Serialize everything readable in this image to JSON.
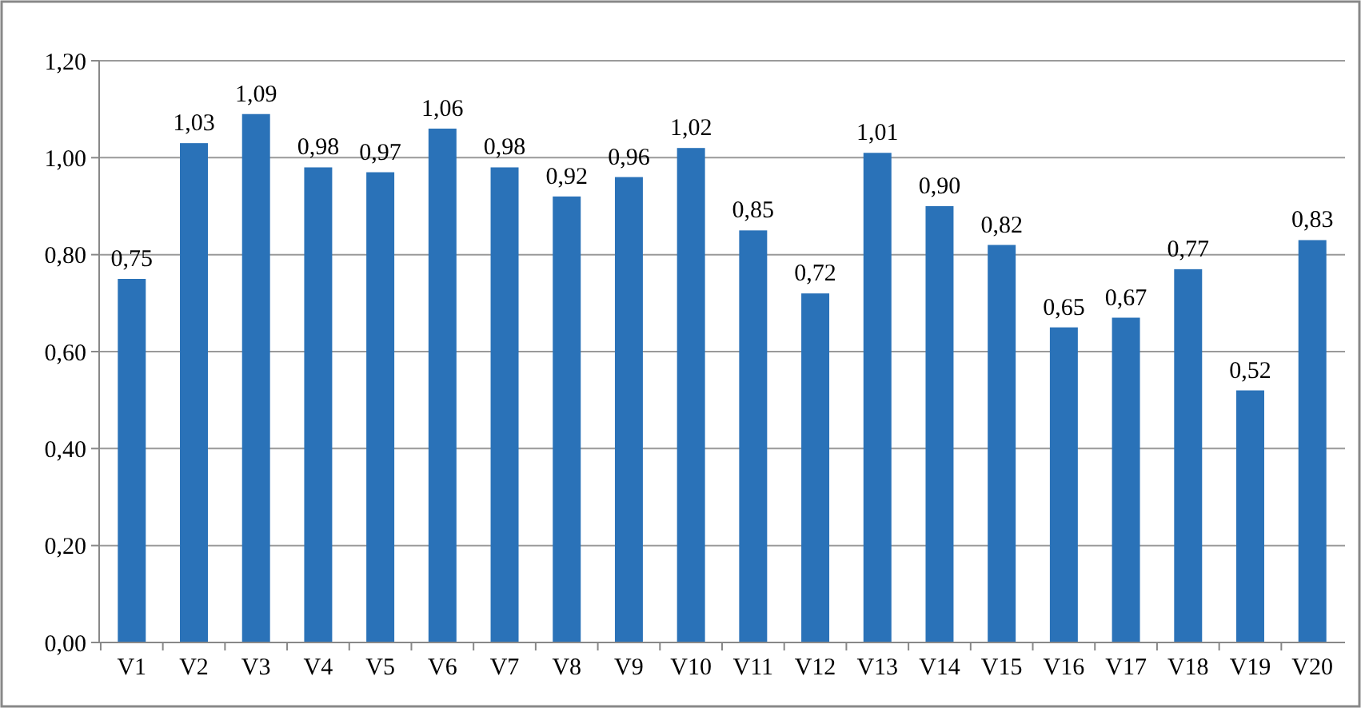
{
  "chart_data": {
    "type": "bar",
    "categories": [
      "V1",
      "V2",
      "V3",
      "V4",
      "V5",
      "V6",
      "V7",
      "V8",
      "V9",
      "V10",
      "V11",
      "V12",
      "V13",
      "V14",
      "V15",
      "V16",
      "V17",
      "V18",
      "V19",
      "V20"
    ],
    "values": [
      0.75,
      1.03,
      1.09,
      0.98,
      0.97,
      1.06,
      0.98,
      0.92,
      0.96,
      1.02,
      0.85,
      0.72,
      1.01,
      0.9,
      0.82,
      0.65,
      0.67,
      0.77,
      0.52,
      0.83
    ],
    "value_labels": [
      "0,75",
      "1,03",
      "1,09",
      "0,98",
      "0,97",
      "1,06",
      "0,98",
      "0,92",
      "0,96",
      "1,02",
      "0,85",
      "0,72",
      "1,01",
      "0,90",
      "0,82",
      "0,65",
      "0,67",
      "0,77",
      "0,52",
      "0,83"
    ],
    "color": "#2a72b8",
    "ylim": [
      0,
      1.2
    ],
    "yticks": [
      {
        "value": 0,
        "label": "0,00"
      },
      {
        "value": 0.2,
        "label": "0,20"
      },
      {
        "value": 0.4,
        "label": "0,40"
      },
      {
        "value": 0.6,
        "label": "0,60"
      },
      {
        "value": 0.8,
        "label": "0,80"
      },
      {
        "value": 1.0,
        "label": "1,00"
      },
      {
        "value": 1.2,
        "label": "1,20"
      }
    ],
    "grid": "y"
  }
}
